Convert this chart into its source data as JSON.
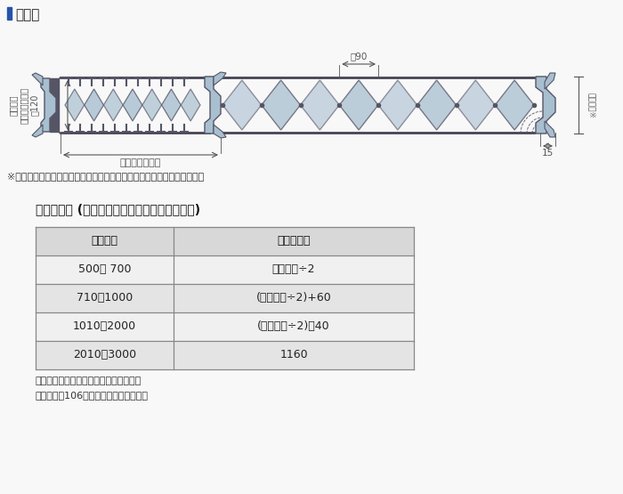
{
  "title": "平面図",
  "bg_color": "#f8f8f8",
  "table_title": "取手の高さ (製品下端から取手下端までの寸法)",
  "col1_header": "製品高さ",
  "col2_header": "取手の高さ",
  "rows": [
    [
      "500～ 700",
      "製品高さ÷2"
    ],
    [
      "710～1000",
      "(製品高さ÷2)+60"
    ],
    [
      "1010～2000",
      "(製品高さ÷2)－40"
    ],
    [
      "2010～3000",
      "1160"
    ]
  ],
  "note1": "※取手の種類によって寸法が異なります。詳しくは下図をご覧ください。",
  "note2": "＊取手の高さは変えることができます。",
  "note3": "　詳しくは106ページをご覧ください。",
  "dim_90": "約90",
  "dim_15": "15",
  "dim_120": "約120",
  "label_leather": "レザー部",
  "label_tatami_dim": "たたみ込み寸法",
  "label_tatami_size": "たたみしろ寸法",
  "label_handle_size": "取手寸法※",
  "diamond_color": "#a8bfd0",
  "frame_color": "#555566",
  "rail_color": "#444455",
  "line_color": "#555555",
  "dim_color": "#555555",
  "table_header_bg": "#d8d8d8",
  "table_row_bg1": "#f0f0f0",
  "table_row_bg2": "#e4e4e4",
  "table_border": "#888888"
}
